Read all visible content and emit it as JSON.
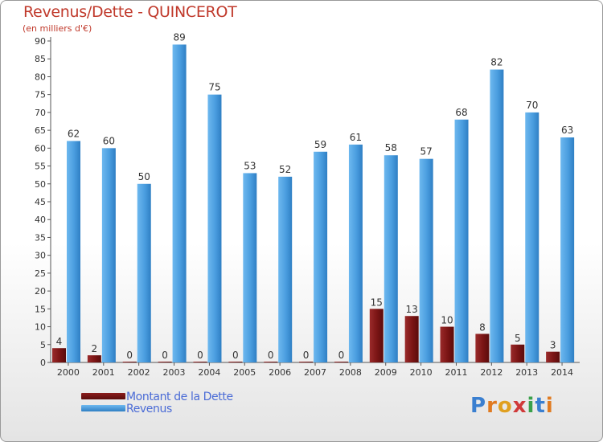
{
  "title": "Revenus/Dette - QUINCEROT",
  "subtitle": "(en milliers d'€)",
  "legend": {
    "debt_label": "Montant de la Dette",
    "revenue_label": "Revenus"
  },
  "logo": {
    "text": "Proxiti",
    "letters": [
      "P",
      "r",
      "o",
      "x",
      "i",
      "t",
      "i"
    ]
  },
  "colors": {
    "title": "#c0392b",
    "debt": "#7a1414",
    "revenue": "#4fa0e0",
    "axis_text": "#333333",
    "legend_text": "#4a6bd6"
  },
  "chart_data": {
    "type": "bar",
    "title": "Revenus/Dette - QUINCEROT",
    "subtitle": "(en milliers d'€)",
    "categories": [
      "2000",
      "2001",
      "2002",
      "2003",
      "2004",
      "2005",
      "2006",
      "2007",
      "2008",
      "2009",
      "2010",
      "2011",
      "2012",
      "2013",
      "2014"
    ],
    "series": [
      {
        "name": "Montant de la Dette",
        "values": [
          4,
          2,
          0,
          0,
          0,
          0,
          0,
          0,
          0,
          15,
          13,
          10,
          8,
          5,
          3
        ]
      },
      {
        "name": "Revenus",
        "values": [
          62,
          60,
          50,
          89,
          75,
          53,
          52,
          59,
          61,
          58,
          57,
          68,
          82,
          70,
          63
        ]
      }
    ],
    "ylim": [
      0,
      90
    ],
    "yticks": [
      0,
      5,
      10,
      15,
      20,
      25,
      30,
      35,
      40,
      45,
      50,
      55,
      60,
      65,
      70,
      75,
      80,
      85,
      90
    ],
    "grid": false,
    "legend_position": "bottom-left"
  }
}
